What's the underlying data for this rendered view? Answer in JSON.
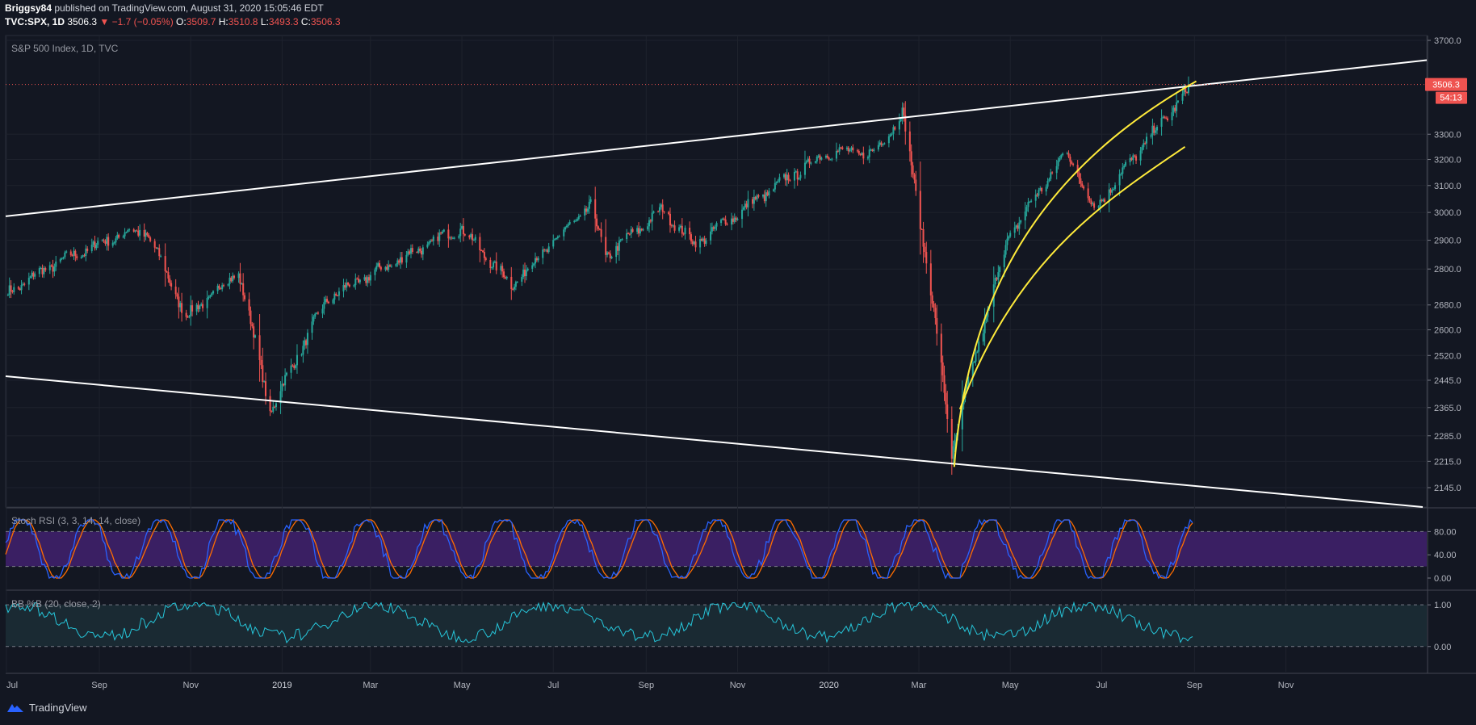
{
  "header": {
    "author": "Briggsy84",
    "published": "published on TradingView.com, August 31, 2020 15:05:46 EDT",
    "symbol": "TVC:SPX, 1D",
    "last": "3506.3",
    "change": "−1.7 (−0.05%)",
    "open_label": "O:",
    "open": "3509.7",
    "high_label": "H:",
    "high": "3510.8",
    "low_label": "L:",
    "low": "3493.3",
    "close_label": "C:",
    "close": "3506.3"
  },
  "main_panel": {
    "title": "S&P 500 Index, 1D, TVC"
  },
  "stoch_panel": {
    "title": "Stoch RSI (3, 3, 14, 14, close)"
  },
  "bb_panel": {
    "title": "BB %B (20, close, 2)"
  },
  "price_tag": {
    "price": "3506.3",
    "countdown": "54:13"
  },
  "footer": {
    "brand": "TradingView"
  },
  "colors": {
    "background": "#131722",
    "up": "#26a69a",
    "down": "#ef5350",
    "trendline": "#ffffff",
    "arc": "#ffeb3b",
    "stoch_k": "#2962ff",
    "stoch_d": "#ff6d00",
    "stoch_band": "#3a1f63",
    "bb_line": "#26c6da",
    "bb_band": "#1a2a33"
  },
  "chart_data": [
    {
      "type": "candlestick",
      "title": "S&P 500 Index, 1D, TVC",
      "x_tick_labels": [
        "Jul",
        "Sep",
        "Nov",
        "2019",
        "Mar",
        "May",
        "Jul",
        "Sep",
        "Nov",
        "2020",
        "Mar",
        "May",
        "Jul",
        "Sep",
        "Nov"
      ],
      "y_tick_labels": [
        "3700.0",
        "3300.0",
        "3200.0",
        "3100.0",
        "3000.0",
        "2900.0",
        "2800.0",
        "2680.0",
        "2600.0",
        "2520.0",
        "2445.0",
        "2365.0",
        "2285.0",
        "2215.0",
        "2145.0"
      ],
      "ylim": [
        2100,
        3720
      ],
      "series": [
        {
          "dates": [
            "2018-07-02",
            "2018-08-01",
            "2018-09-20",
            "2018-10-03",
            "2018-10-29",
            "2018-12-03",
            "2018-12-24",
            "2019-01-31",
            "2019-04-30",
            "2019-06-03",
            "2019-07-26",
            "2019-08-05",
            "2019-09-12",
            "2019-10-03",
            "2019-12-31",
            "2020-01-31",
            "2020-02-19",
            "2020-03-23",
            "2020-04-30",
            "2020-06-08",
            "2020-06-26",
            "2020-08-31"
          ],
          "close": [
            2720,
            2815,
            2930,
            2925,
            2640,
            2790,
            2351,
            2700,
            2945,
            2745,
            3025,
            2845,
            3010,
            2885,
            3230,
            3225,
            3386,
            2237,
            2912,
            3232,
            3010,
            3506
          ]
        }
      ],
      "last_price": 3506.3
    },
    {
      "type": "line",
      "title": "Stoch RSI (3, 3, 14, 14, close)",
      "y_tick_labels": [
        "80.00",
        "40.00",
        "0.00"
      ],
      "ylim": [
        0,
        100
      ],
      "band": [
        20,
        80
      ]
    },
    {
      "type": "line",
      "title": "BB %B (20, close, 2)",
      "y_tick_labels": [
        "1.00",
        "0.00"
      ],
      "ylim": [
        -0.45,
        1.1
      ]
    }
  ]
}
